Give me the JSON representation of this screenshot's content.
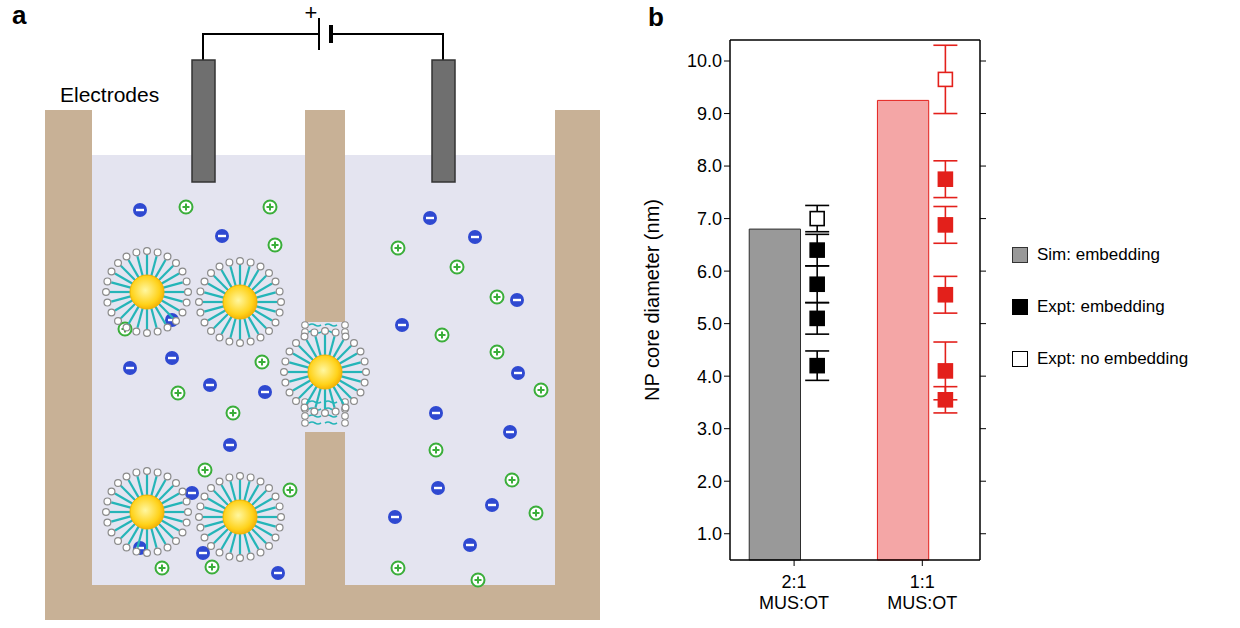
{
  "panels": {
    "a": {
      "letter": "a",
      "electrode_label": "Electrodes",
      "battery_sign": "+"
    },
    "b": {
      "letter": "b"
    }
  },
  "chart_data": {
    "type": "bar",
    "categories": [
      "2:1 MUS:OT",
      "1:1 MUS:OT"
    ],
    "y_label": "NP core diameter (nm)",
    "ylim": [
      0.5,
      10.4
    ],
    "yticks": [
      {
        "value": 1,
        "label": "1.0"
      },
      {
        "value": 2,
        "label": "2.0"
      },
      {
        "value": 3,
        "label": "3.0"
      },
      {
        "value": 4,
        "label": "4.0"
      },
      {
        "value": 5,
        "label": "5.0"
      },
      {
        "value": 6,
        "label": "6.0"
      },
      {
        "value": 7,
        "label": "7.0"
      },
      {
        "value": 8,
        "label": "8.0"
      },
      {
        "value": 9,
        "label": "9.0"
      },
      {
        "value": 10,
        "label": "10.0"
      }
    ],
    "legend": "right",
    "series": [
      {
        "name": "Sim: embedding",
        "type": "bar",
        "color": "#999999",
        "colors": [
          "#999999",
          "#f4a6a6"
        ],
        "values": [
          6.8,
          9.25
        ]
      },
      {
        "name": "Expt: embedding",
        "type": "scatter",
        "marker": "square",
        "color": "#000000",
        "colors": [
          "#000000",
          "#e3201b"
        ],
        "values": [
          [
            6.4,
            5.75,
            5.1,
            4.2
          ],
          [
            7.75,
            6.88,
            5.55,
            4.1,
            3.55
          ]
        ],
        "errors": [
          [
            0.3,
            0.35,
            0.3,
            0.28
          ],
          [
            0.35,
            0.35,
            0.35,
            0.55,
            0.25
          ]
        ]
      },
      {
        "name": "Expt: no embedding",
        "type": "scatter",
        "marker": "open_square",
        "color": "#000000",
        "colors": [
          "#000000",
          "#e3201b"
        ],
        "values": [
          [
            7.0
          ],
          [
            9.65
          ]
        ],
        "errors": [
          [
            0.25
          ],
          [
            0.65
          ]
        ]
      }
    ]
  }
}
